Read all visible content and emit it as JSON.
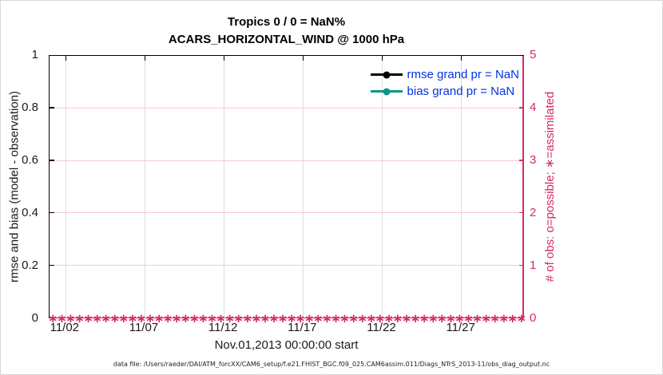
{
  "figure": {
    "title_line1": "Tropics 0 / 0 = NaN%",
    "title_line2": "ACARS_HORIZONTAL_WIND @ 1000 hPa",
    "xlabel": "Nov.01,2013 00:00:00 start",
    "caption": "data file: /Users/raeder/DAI/ATM_forcXX/CAM6_setup/f.e21.FHIST_BGC.f09_025.CAM6assim.011/Diags_NTrS_2013-11/obs_diag_output.nc",
    "left_axis": {
      "label": "rmse and bias (model - observation)",
      "ticks": [
        "0",
        "0.2",
        "0.4",
        "0.6",
        "0.8",
        "1"
      ],
      "color": "#1a1a1a"
    },
    "right_axis": {
      "label": "# of obs: o=possible; ∗=assimilated",
      "ticks": [
        "0",
        "1",
        "2",
        "3",
        "4",
        "5"
      ],
      "color": "#d5296a"
    },
    "x_axis": {
      "ticks": [
        "11/02",
        "11/07",
        "11/12",
        "11/17",
        "11/22",
        "11/27"
      ]
    },
    "legend": {
      "text_color": "#0033e6",
      "items": [
        {
          "id": "rmse",
          "label": "rmse grand pr = NaN",
          "color": "#000000"
        },
        {
          "id": "bias",
          "label": "bias grand pr = NaN",
          "color": "#109689"
        }
      ]
    },
    "marker_band": {
      "symbol": "∗",
      "color": "#d5296a",
      "value": 0
    },
    "grid_colors": {
      "vertical": "#dcdcdc",
      "horizontal": "#f6c9da"
    }
  },
  "chart_data": {
    "type": "line",
    "title": "Tropics 0 / 0 = NaN%",
    "subtitle": "ACARS_HORIZONTAL_WIND @ 1000 hPa",
    "xlabel": "Nov.01,2013 00:00:00 start",
    "ylabel": "rmse and bias (model - observation)",
    "ylabel_right": "# of obs: o=possible; ∗=assimilated",
    "x_tick_labels": [
      "11/02",
      "11/07",
      "11/12",
      "11/17",
      "11/22",
      "11/27"
    ],
    "x_range": [
      "Nov 01, 2013 00:00:00",
      "Dec 01, 2013"
    ],
    "ylim": [
      0,
      1
    ],
    "yticks": [
      0,
      0.2,
      0.4,
      0.6,
      0.8,
      1
    ],
    "ylim_right": [
      0,
      5
    ],
    "yticks_right": [
      0,
      1,
      2,
      3,
      4,
      5
    ],
    "grid": true,
    "legend_position": "upper-right-inside, no frame",
    "series": [
      {
        "name": "rmse grand pr = NaN",
        "axis": "left",
        "color": "#000000",
        "marker": "filled-circle",
        "values": "all NaN — no points drawn"
      },
      {
        "name": "bias grand pr = NaN",
        "axis": "left",
        "color": "#109689",
        "marker": "filled-circle",
        "values": "all NaN — no points drawn"
      },
      {
        "name": "# of obs assimilated",
        "axis": "right",
        "color": "#d5296a",
        "marker": "∗",
        "constant_value": 0,
        "n_points": 120,
        "note": "dense band of ∗ markers at y=0 spanning full x range"
      }
    ]
  }
}
